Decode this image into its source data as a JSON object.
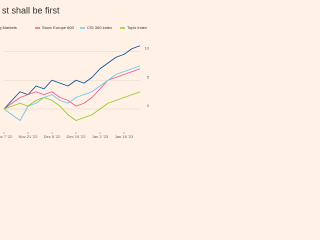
{
  "chart_data": {
    "type": "line",
    "title": "st shall be first",
    "categories": [
      "Nov 7 '22",
      null,
      null,
      "Nov 21 '22",
      null,
      null,
      "Dec 5 '22",
      null,
      null,
      "Dec 19 '22",
      null,
      null,
      "Jan 2 '23",
      null,
      null,
      "Jan 16 '23",
      null,
      null
    ],
    "series": [
      {
        "name": "ng Markets",
        "color": "#0f5499",
        "values": [
          0,
          1.5,
          3,
          2.5,
          4,
          3.5,
          5,
          4.5,
          4,
          5,
          4.5,
          5.5,
          7,
          8,
          9,
          9.5,
          10.5,
          11
        ]
      },
      {
        "name": "Stoxx Europe 600",
        "color": "#eb5e8d",
        "values": [
          0,
          1,
          2,
          2.5,
          3,
          2.5,
          3,
          2,
          1.5,
          0.5,
          1,
          2,
          3.5,
          5,
          5.5,
          6,
          6.5,
          7
        ]
      },
      {
        "name": "CSI 300 index",
        "color": "#70c7f0",
        "values": [
          0,
          -1,
          -2,
          0.5,
          1,
          2,
          2.5,
          1.5,
          1,
          2,
          2.5,
          3,
          4,
          5,
          6,
          6.5,
          7,
          7.5
        ]
      },
      {
        "name": "Topix index",
        "color": "#96cc28",
        "values": [
          0,
          0.5,
          1,
          0.5,
          1.5,
          2,
          1.5,
          0.5,
          -1,
          -2,
          -1.5,
          -1,
          0,
          1,
          1.5,
          2,
          2.5,
          3
        ]
      }
    ],
    "ylim": [
      -4,
      12
    ],
    "yticks": [
      0,
      5,
      10
    ],
    "grid": true
  }
}
